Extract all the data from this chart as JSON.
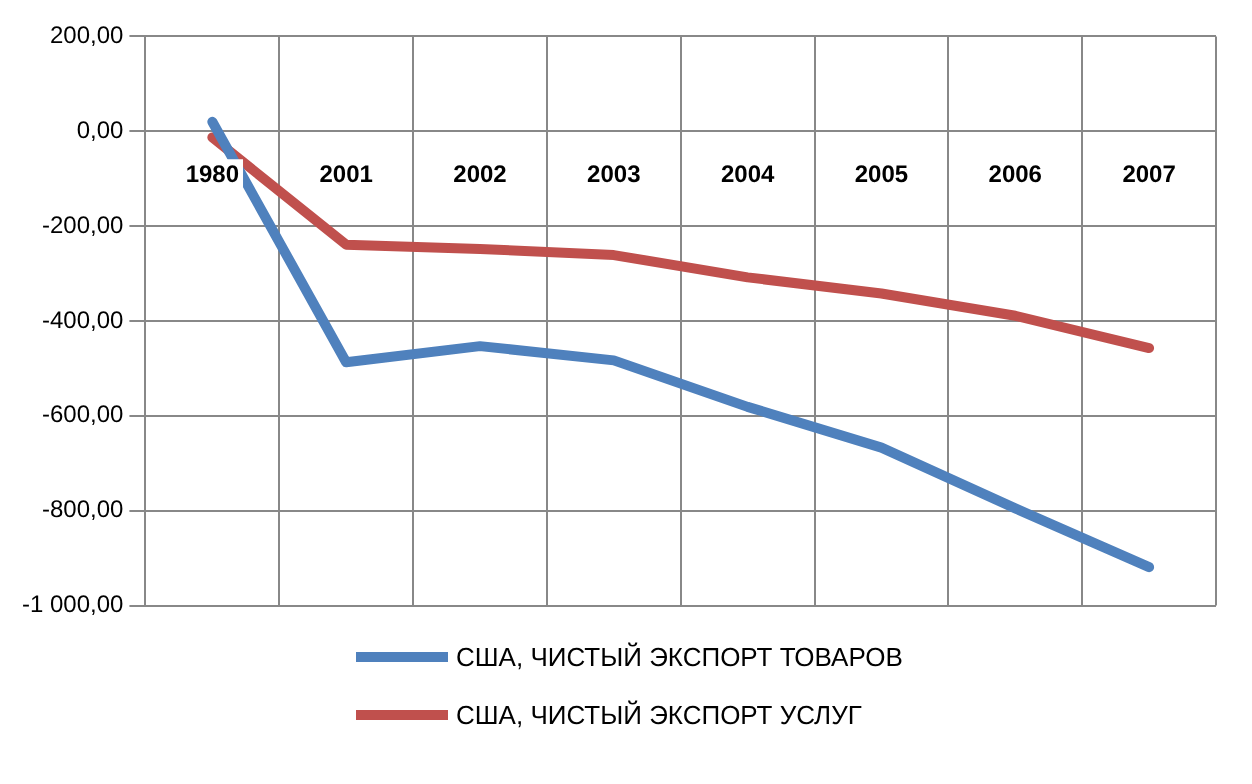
{
  "chart_data": {
    "type": "line",
    "categories": [
      "1980",
      "2001",
      "2002",
      "2003",
      "2004",
      "2005",
      "2006",
      "2007"
    ],
    "series": [
      {
        "name": "США, ЧИСТЫЙ ЭКСПОРТ ТОВАРОВ",
        "color": "#4f81bd",
        "values": [
          20,
          -487,
          -453,
          -483,
          -581,
          -667,
          -795,
          -919
        ]
      },
      {
        "name": "США, ЧИСТЫЙ ЭКСПОРТ УСЛУГ",
        "color": "#c0504d",
        "values": [
          -13,
          -239,
          -248,
          -261,
          -308,
          -342,
          -389,
          -457
        ]
      }
    ],
    "ylim": [
      -1000,
      200
    ],
    "yticks": [
      {
        "value": -1000,
        "label": "-1 000,00"
      },
      {
        "value": -800,
        "label": "-800,00"
      },
      {
        "value": -600,
        "label": "-600,00"
      },
      {
        "value": -400,
        "label": "-400,00"
      },
      {
        "value": -200,
        "label": "-200,00"
      },
      {
        "value": 0,
        "label": "0,00"
      },
      {
        "value": 200,
        "label": "200,00"
      }
    ],
    "grid": true,
    "legend": "bottom",
    "marker": "none",
    "line_style": "solid"
  }
}
